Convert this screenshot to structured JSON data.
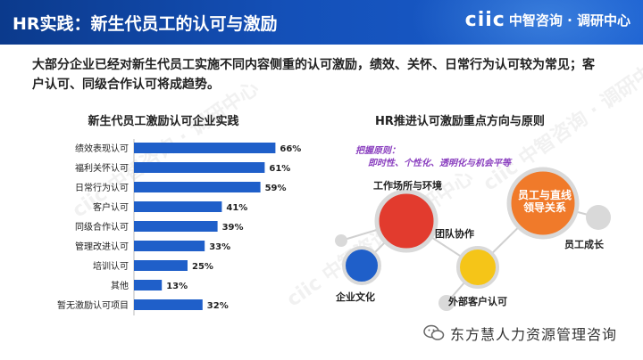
{
  "header": {
    "title": "HR实践：新生代员工的认可与激励",
    "logo_mark": "ciic",
    "logo_name": "中智咨询 · 调研中心"
  },
  "intro": "大部分企业已经对新生代员工实施不同内容侧重的认可激励，绩效、关怀、日常行为认可较为常见；客户认可、同级合作认可将成趋势。",
  "left": {
    "title": "新生代员工激励认可企业实践"
  },
  "chart_data": {
    "type": "bar",
    "orientation": "horizontal",
    "title": "新生代员工激励认可企业实践",
    "categories": [
      "绩效表现认可",
      "福利关怀认可",
      "日常行为认可",
      "客户认可",
      "同级合作认可",
      "管理改进认可",
      "培训认可",
      "其他",
      "暂无激励认可项目"
    ],
    "values": [
      66,
      61,
      59,
      41,
      39,
      33,
      25,
      13,
      32
    ],
    "value_labels": [
      "66%",
      "61%",
      "59%",
      "41%",
      "39%",
      "33%",
      "25%",
      "13%",
      "32%"
    ],
    "xlim": [
      0,
      100
    ],
    "bar_color": "#1f5fc9"
  },
  "right": {
    "title": "HR推进认可激励重点方向与原则",
    "principle_label": "把握原则：",
    "principle_text": "即时性、个性化、透明化与机会平等",
    "bubbles": {
      "work_env": "工作场所与环境",
      "team": "团队协作",
      "culture": "企业文化",
      "external": "外部客户认可",
      "leader": "员工与直线领导关系",
      "growth": "员工成长"
    },
    "colors": {
      "red": "#e23b2e",
      "blue": "#1f5fc9",
      "yellow": "#f5c518",
      "orange": "#f07a2a",
      "grey": "#d9d9d9"
    }
  },
  "footer": {
    "text": "东方慧人力资源管理咨询"
  },
  "watermarks": [
    "ciic 中智咨询 · 调研中心",
    "ciic 中智咨询 · 调研中心",
    "ciic 中智咨询 · 调研中心"
  ]
}
